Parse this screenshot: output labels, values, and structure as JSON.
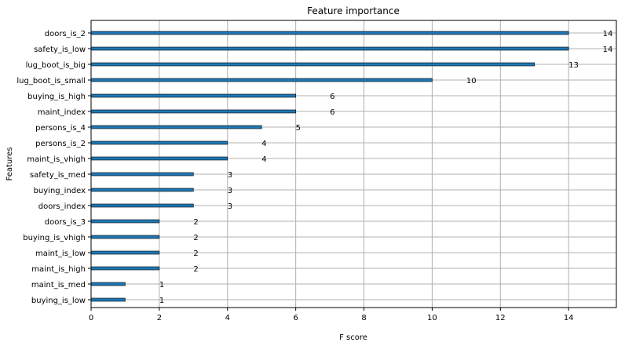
{
  "chart_data": {
    "type": "bar",
    "orientation": "horizontal",
    "title": "Feature importance",
    "xlabel": "F score",
    "ylabel": "Features",
    "xlim": [
      0,
      15.4
    ],
    "xticks": [
      0,
      2,
      4,
      6,
      8,
      10,
      12,
      14
    ],
    "grid": true,
    "bar_color": "#1f77b4",
    "categories": [
      "doors_is_2",
      "safety_is_low",
      "lug_boot_is_big",
      "lug_boot_is_small",
      "buying_is_high",
      "maint_index",
      "persons_is_4",
      "persons_is_2",
      "maint_is_vhigh",
      "safety_is_med",
      "buying_index",
      "doors_index",
      "doors_is_3",
      "buying_is_vhigh",
      "maint_is_low",
      "maint_is_high",
      "maint_is_med",
      "buying_is_low"
    ],
    "values": [
      14,
      14,
      13,
      10,
      6,
      6,
      5,
      4,
      4,
      3,
      3,
      3,
      2,
      2,
      2,
      2,
      1,
      1
    ]
  }
}
